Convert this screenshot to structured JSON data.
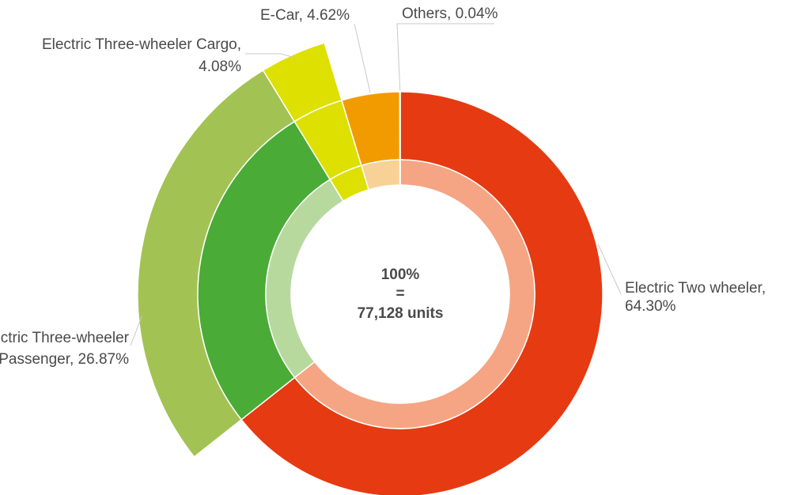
{
  "chart_data": {
    "type": "pie",
    "center": {
      "line1": "100%",
      "line2": "=",
      "line3": "77,128 units"
    },
    "slices": [
      {
        "name": "Electric Two wheeler",
        "value": 64.3,
        "label_line1": "Electric Two wheeler,",
        "label_line2": "64.30%",
        "color": "#e63a12",
        "inner_color": "#f5a583",
        "outer_ring": false
      },
      {
        "name": "Electric Three-wheeler Passenger",
        "value": 26.87,
        "label_line1": "Electric Three-wheeler",
        "label_line2": "Passenger, 26.87%",
        "color": "#4aab36",
        "inner_color": "#b7d99e",
        "outer_ring": true,
        "outer_color": "#a2c353"
      },
      {
        "name": "Electric Three-wheeler Cargo",
        "value": 4.08,
        "label_line1": "Electric Three-wheeler Cargo,",
        "label_line2": "4.08%",
        "color": "#dde000",
        "inner_color": "#dde000",
        "outer_ring": true,
        "outer_color": "#dde000"
      },
      {
        "name": "E-Car",
        "value": 4.62,
        "label_line1": "E-Car, 4.62%",
        "label_line2": "",
        "color": "#f29b00",
        "inner_color": "#f8d196",
        "outer_ring": false
      },
      {
        "name": "Others",
        "value": 0.04,
        "label_line1": "Others, 0.04%",
        "label_line2": "",
        "color": "#f29b00",
        "inner_color": "#f8d196",
        "outer_ring": false
      }
    ],
    "legend": "none",
    "grid": false
  }
}
